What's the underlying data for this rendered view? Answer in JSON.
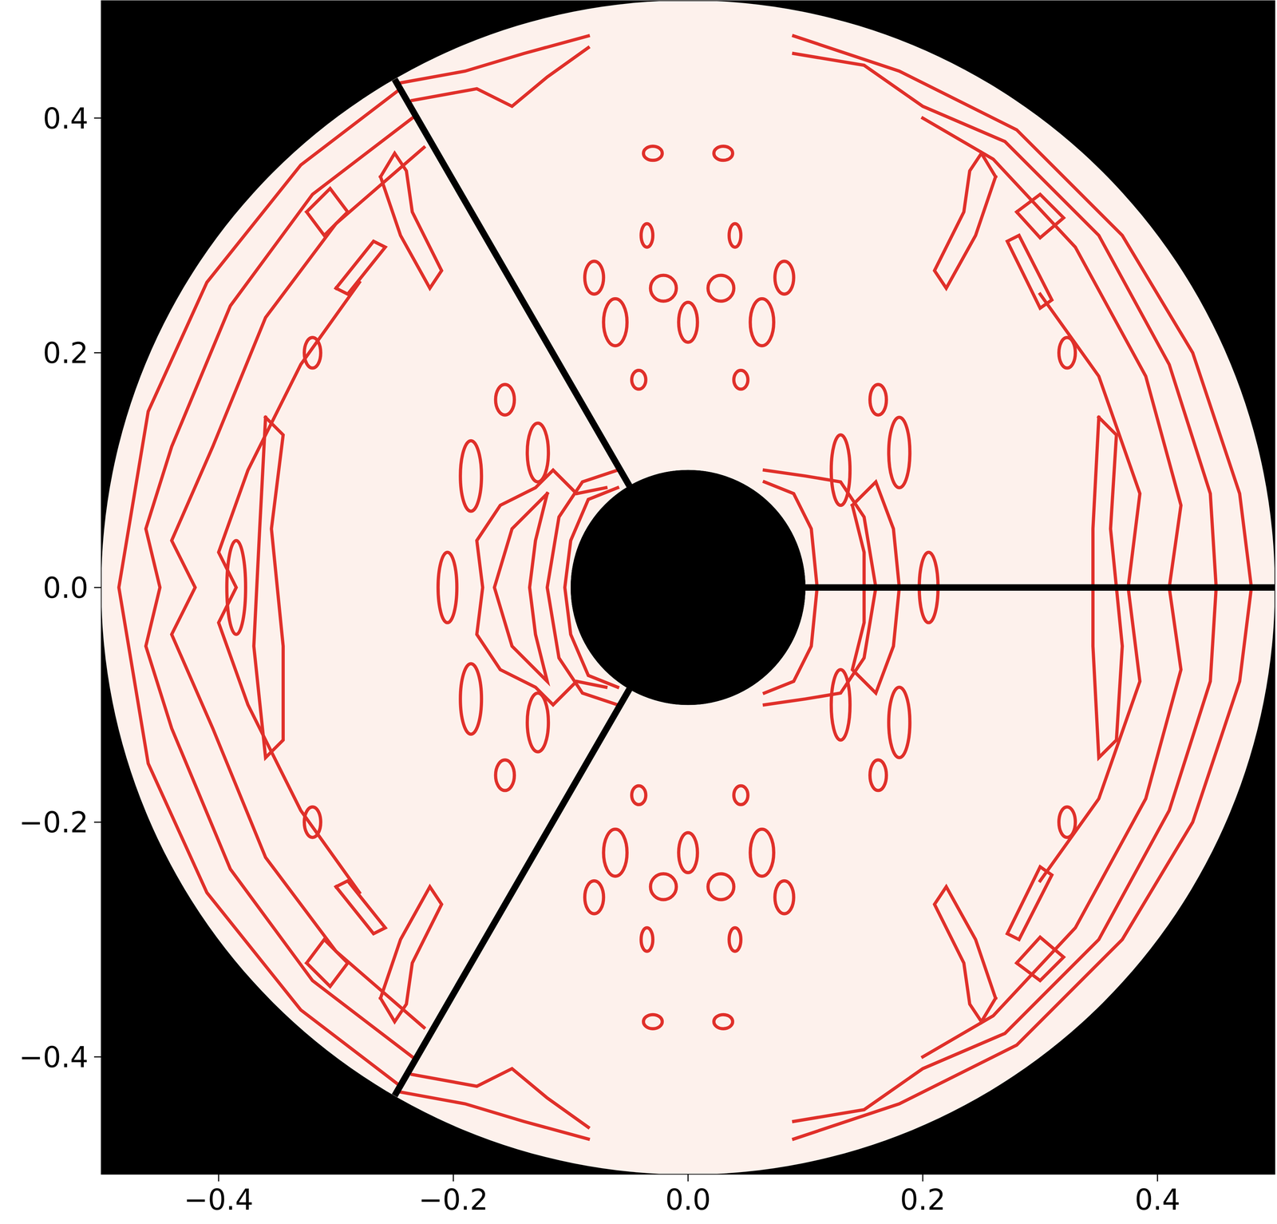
{
  "chart_data": {
    "type": "contour",
    "xlim": [
      -0.5,
      0.5
    ],
    "ylim": [
      -0.5,
      0.5
    ],
    "xticks": [
      {
        "value": -0.4,
        "label": "−0.4"
      },
      {
        "value": -0.2,
        "label": "−0.2"
      },
      {
        "value": 0,
        "label": "0.0"
      },
      0.2,
      0.4
    ],
    "yticks": [
      {
        "value": -0.4,
        "label": "−0.4"
      },
      {
        "value": -0.2,
        "label": "−0.2"
      },
      {
        "value": 0,
        "label": "0.0"
      },
      0.2,
      0.4
    ],
    "color": "#e0302a",
    "inner_radius": 0.1,
    "outer_radius": 0.5,
    "boundary_angles": [
      0,
      120,
      240
    ],
    "contours": [
      [
        [
          -0.245,
          0.425
        ],
        [
          -0.33,
          0.36
        ],
        [
          -0.41,
          0.26
        ],
        [
          -0.46,
          0.15
        ],
        [
          -0.485,
          0.0
        ],
        [
          -0.46,
          -0.15
        ],
        [
          -0.41,
          -0.26
        ],
        [
          -0.33,
          -0.36
        ],
        [
          -0.245,
          -0.425
        ]
      ],
      [
        [
          -0.235,
          0.4
        ],
        [
          -0.32,
          0.335
        ],
        [
          -0.39,
          0.24
        ],
        [
          -0.44,
          0.12
        ],
        [
          -0.462,
          0.05
        ],
        [
          -0.45,
          0.0
        ],
        [
          -0.462,
          -0.05
        ],
        [
          -0.44,
          -0.12
        ],
        [
          -0.39,
          -0.24
        ],
        [
          -0.32,
          -0.335
        ],
        [
          -0.235,
          -0.4
        ]
      ],
      [
        [
          -0.225,
          0.375
        ],
        [
          -0.3,
          0.31
        ],
        [
          -0.36,
          0.23
        ],
        [
          -0.405,
          0.12
        ],
        [
          -0.44,
          0.04
        ],
        [
          -0.42,
          0.0
        ],
        [
          -0.44,
          -0.04
        ],
        [
          -0.405,
          -0.12
        ],
        [
          -0.36,
          -0.23
        ],
        [
          -0.3,
          -0.31
        ],
        [
          -0.225,
          -0.375
        ]
      ],
      [
        [
          -0.28,
          0.26
        ],
        [
          -0.33,
          0.19
        ],
        [
          -0.375,
          0.1
        ],
        [
          -0.4,
          0.03
        ],
        [
          -0.385,
          0.0
        ],
        [
          -0.4,
          -0.03
        ],
        [
          -0.375,
          -0.1
        ],
        [
          -0.33,
          -0.19
        ],
        [
          -0.28,
          -0.26
        ]
      ],
      [
        [
          -0.36,
          0.145
        ],
        [
          -0.345,
          0.13
        ],
        [
          -0.355,
          0.05
        ],
        [
          -0.345,
          -0.05
        ],
        [
          -0.345,
          -0.13
        ],
        [
          -0.36,
          -0.145
        ],
        [
          -0.37,
          -0.05
        ],
        [
          -0.365,
          0.05
        ],
        [
          -0.36,
          0.145
        ]
      ],
      [
        [
          -0.325,
          0.32
        ],
        [
          -0.305,
          0.34
        ],
        [
          -0.29,
          0.32
        ],
        [
          -0.31,
          0.3
        ],
        [
          -0.325,
          0.32
        ]
      ],
      [
        [
          -0.3,
          0.255
        ],
        [
          -0.268,
          0.295
        ],
        [
          -0.258,
          0.29
        ],
        [
          -0.29,
          0.25
        ],
        [
          -0.3,
          0.255
        ]
      ],
      [
        [
          -0.262,
          0.35
        ],
        [
          -0.25,
          0.37
        ],
        [
          -0.24,
          0.355
        ],
        [
          -0.235,
          0.32
        ],
        [
          -0.21,
          0.27
        ],
        [
          -0.22,
          0.255
        ],
        [
          -0.245,
          0.3
        ],
        [
          -0.262,
          0.35
        ]
      ],
      [
        [
          -0.325,
          -0.32
        ],
        [
          -0.305,
          -0.34
        ],
        [
          -0.29,
          -0.32
        ],
        [
          -0.31,
          -0.3
        ],
        [
          -0.325,
          -0.32
        ]
      ],
      [
        [
          -0.3,
          -0.255
        ],
        [
          -0.268,
          -0.295
        ],
        [
          -0.258,
          -0.29
        ],
        [
          -0.29,
          -0.25
        ],
        [
          -0.3,
          -0.255
        ]
      ],
      [
        [
          -0.262,
          -0.35
        ],
        [
          -0.25,
          -0.37
        ],
        [
          -0.24,
          -0.355
        ],
        [
          -0.235,
          -0.32
        ],
        [
          -0.21,
          -0.27
        ],
        [
          -0.22,
          -0.255
        ],
        [
          -0.245,
          -0.3
        ],
        [
          -0.262,
          -0.35
        ]
      ],
      [
        [
          -0.245,
          0.43
        ],
        [
          -0.19,
          0.44
        ],
        [
          -0.14,
          0.455
        ],
        [
          -0.085,
          0.47
        ]
      ],
      [
        [
          -0.235,
          0.415
        ],
        [
          -0.18,
          0.425
        ],
        [
          -0.15,
          0.41
        ],
        [
          -0.12,
          0.435
        ],
        [
          -0.085,
          0.46
        ]
      ],
      [
        [
          -0.245,
          -0.43
        ],
        [
          -0.19,
          -0.44
        ],
        [
          -0.14,
          -0.455
        ],
        [
          -0.085,
          -0.47
        ]
      ],
      [
        [
          -0.235,
          -0.415
        ],
        [
          -0.18,
          -0.425
        ],
        [
          -0.15,
          -0.41
        ],
        [
          -0.12,
          -0.435
        ],
        [
          -0.085,
          -0.46
        ]
      ],
      [
        [
          0.09,
          0.47
        ],
        [
          0.18,
          0.44
        ],
        [
          0.28,
          0.39
        ],
        [
          0.37,
          0.3
        ],
        [
          0.43,
          0.2
        ],
        [
          0.47,
          0.08
        ],
        [
          0.48,
          0.0
        ],
        [
          0.47,
          -0.08
        ],
        [
          0.43,
          -0.2
        ],
        [
          0.37,
          -0.3
        ],
        [
          0.28,
          -0.39
        ],
        [
          0.18,
          -0.44
        ],
        [
          0.09,
          -0.47
        ]
      ],
      [
        [
          0.09,
          0.455
        ],
        [
          0.15,
          0.445
        ],
        [
          0.2,
          0.41
        ],
        [
          0.27,
          0.38
        ],
        [
          0.35,
          0.3
        ],
        [
          0.41,
          0.19
        ],
        [
          0.445,
          0.08
        ],
        [
          0.45,
          0.0
        ],
        [
          0.445,
          -0.08
        ],
        [
          0.41,
          -0.19
        ],
        [
          0.35,
          -0.3
        ],
        [
          0.27,
          -0.38
        ],
        [
          0.2,
          -0.41
        ],
        [
          0.15,
          -0.445
        ],
        [
          0.09,
          -0.455
        ]
      ],
      [
        [
          0.2,
          0.4
        ],
        [
          0.26,
          0.365
        ],
        [
          0.33,
          0.29
        ],
        [
          0.39,
          0.18
        ],
        [
          0.42,
          0.07
        ],
        [
          0.41,
          0.0
        ],
        [
          0.42,
          -0.07
        ],
        [
          0.39,
          -0.18
        ],
        [
          0.33,
          -0.29
        ],
        [
          0.26,
          -0.365
        ],
        [
          0.2,
          -0.4
        ]
      ],
      [
        [
          0.3,
          0.25
        ],
        [
          0.35,
          0.18
        ],
        [
          0.385,
          0.08
        ],
        [
          0.375,
          0.0
        ],
        [
          0.385,
          -0.08
        ],
        [
          0.35,
          -0.18
        ],
        [
          0.3,
          -0.25
        ]
      ],
      [
        [
          0.35,
          0.145
        ],
        [
          0.365,
          0.13
        ],
        [
          0.36,
          0.05
        ],
        [
          0.37,
          -0.05
        ],
        [
          0.365,
          -0.13
        ],
        [
          0.35,
          -0.145
        ],
        [
          0.345,
          -0.05
        ],
        [
          0.345,
          0.05
        ],
        [
          0.35,
          0.145
        ]
      ],
      [
        [
          0.28,
          0.32
        ],
        [
          0.3,
          0.335
        ],
        [
          0.32,
          0.315
        ],
        [
          0.3,
          0.298
        ],
        [
          0.28,
          0.32
        ]
      ],
      [
        [
          0.272,
          0.295
        ],
        [
          0.282,
          0.3
        ],
        [
          0.31,
          0.245
        ],
        [
          0.3,
          0.238
        ],
        [
          0.272,
          0.295
        ]
      ],
      [
        [
          0.262,
          0.35
        ],
        [
          0.25,
          0.37
        ],
        [
          0.24,
          0.355
        ],
        [
          0.235,
          0.32
        ],
        [
          0.21,
          0.27
        ],
        [
          0.22,
          0.255
        ],
        [
          0.245,
          0.3
        ],
        [
          0.262,
          0.35
        ]
      ],
      [
        [
          0.28,
          -0.32
        ],
        [
          0.3,
          -0.335
        ],
        [
          0.32,
          -0.315
        ],
        [
          0.3,
          -0.298
        ],
        [
          0.28,
          -0.32
        ]
      ],
      [
        [
          0.272,
          -0.295
        ],
        [
          0.282,
          -0.3
        ],
        [
          0.31,
          -0.245
        ],
        [
          0.3,
          -0.238
        ],
        [
          0.272,
          -0.295
        ]
      ],
      [
        [
          0.262,
          -0.35
        ],
        [
          0.25,
          -0.37
        ],
        [
          0.24,
          -0.355
        ],
        [
          0.235,
          -0.32
        ],
        [
          0.21,
          -0.27
        ],
        [
          0.22,
          -0.255
        ],
        [
          0.245,
          -0.3
        ],
        [
          0.262,
          -0.35
        ]
      ],
      [
        [
          -0.06,
          0.1
        ],
        [
          -0.09,
          0.09
        ],
        [
          -0.11,
          0.06
        ],
        [
          -0.12,
          0.0
        ],
        [
          -0.11,
          -0.06
        ],
        [
          -0.09,
          -0.09
        ],
        [
          -0.06,
          -0.1
        ]
      ],
      [
        [
          -0.06,
          0.085
        ],
        [
          -0.085,
          0.075
        ],
        [
          -0.1,
          0.04
        ],
        [
          -0.105,
          0.0
        ],
        [
          -0.1,
          -0.04
        ],
        [
          -0.085,
          -0.075
        ],
        [
          -0.06,
          -0.085
        ]
      ],
      [
        [
          -0.12,
          0.08
        ],
        [
          -0.15,
          0.05
        ],
        [
          -0.165,
          0.0
        ],
        [
          -0.15,
          -0.05
        ],
        [
          -0.12,
          -0.08
        ],
        [
          -0.13,
          -0.04
        ],
        [
          -0.135,
          0.0
        ],
        [
          -0.13,
          0.04
        ],
        [
          -0.12,
          0.08
        ]
      ],
      [
        [
          -0.07,
          0.085
        ],
        [
          -0.095,
          0.08
        ],
        [
          -0.115,
          0.1
        ],
        [
          -0.13,
          0.085
        ],
        [
          -0.16,
          0.07
        ],
        [
          -0.18,
          0.04
        ],
        [
          -0.175,
          0.0
        ],
        [
          -0.18,
          -0.04
        ],
        [
          -0.16,
          -0.07
        ],
        [
          -0.13,
          -0.085
        ],
        [
          -0.115,
          -0.1
        ],
        [
          -0.095,
          -0.08
        ],
        [
          -0.07,
          -0.085
        ]
      ],
      [
        [
          0.065,
          0.09
        ],
        [
          0.09,
          0.08
        ],
        [
          0.105,
          0.05
        ],
        [
          0.11,
          0.0
        ],
        [
          0.105,
          -0.05
        ],
        [
          0.09,
          -0.08
        ],
        [
          0.065,
          -0.09
        ]
      ],
      [
        [
          0.065,
          0.1
        ],
        [
          0.1,
          0.095
        ],
        [
          0.13,
          0.09
        ],
        [
          0.15,
          0.06
        ],
        [
          0.16,
          0.0
        ],
        [
          0.15,
          -0.06
        ],
        [
          0.13,
          -0.09
        ],
        [
          0.1,
          -0.095
        ],
        [
          0.065,
          -0.1
        ]
      ],
      [
        [
          0.14,
          0.07
        ],
        [
          0.16,
          0.09
        ],
        [
          0.175,
          0.05
        ],
        [
          0.18,
          0.0
        ],
        [
          0.175,
          -0.05
        ],
        [
          0.16,
          -0.09
        ],
        [
          0.14,
          -0.07
        ],
        [
          0.15,
          -0.03
        ],
        [
          0.15,
          0.03
        ],
        [
          0.14,
          0.07
        ]
      ]
    ],
    "loops": [
      [
        -0.03,
        0.37,
        0.008,
        0.006
      ],
      [
        0.03,
        0.37,
        0.008,
        0.006
      ],
      [
        -0.035,
        0.3,
        0.005,
        0.01
      ],
      [
        0.04,
        0.3,
        0.005,
        0.01
      ],
      [
        -0.042,
        0.177,
        0.006,
        0.008
      ],
      [
        0.045,
        0.177,
        0.006,
        0.008
      ],
      [
        -0.08,
        0.264,
        0.008,
        0.014
      ],
      [
        -0.021,
        0.255,
        0.011,
        0.011
      ],
      [
        0.028,
        0.255,
        0.011,
        0.011
      ],
      [
        0.082,
        0.264,
        0.008,
        0.014
      ],
      [
        -0.062,
        0.226,
        0.01,
        0.02
      ],
      [
        0.0,
        0.226,
        0.008,
        0.017
      ],
      [
        0.063,
        0.226,
        0.01,
        0.02
      ],
      [
        -0.156,
        0.16,
        0.008,
        0.013
      ],
      [
        0.162,
        0.16,
        0.007,
        0.013
      ],
      [
        -0.32,
        0.2,
        0.007,
        0.013
      ],
      [
        0.323,
        0.2,
        0.007,
        0.013
      ],
      [
        -0.185,
        0.095,
        0.009,
        0.03
      ],
      [
        -0.128,
        0.115,
        0.009,
        0.025
      ],
      [
        0.13,
        0.1,
        0.008,
        0.03
      ],
      [
        0.18,
        0.115,
        0.009,
        0.03
      ],
      [
        -0.03,
        -0.37,
        0.008,
        0.006
      ],
      [
        0.03,
        -0.37,
        0.008,
        0.006
      ],
      [
        -0.035,
        -0.3,
        0.005,
        0.01
      ],
      [
        0.04,
        -0.3,
        0.005,
        0.01
      ],
      [
        -0.042,
        -0.177,
        0.006,
        0.008
      ],
      [
        0.045,
        -0.177,
        0.006,
        0.008
      ],
      [
        -0.08,
        -0.264,
        0.008,
        0.014
      ],
      [
        -0.021,
        -0.255,
        0.011,
        0.011
      ],
      [
        0.028,
        -0.255,
        0.011,
        0.011
      ],
      [
        0.082,
        -0.264,
        0.008,
        0.014
      ],
      [
        -0.062,
        -0.226,
        0.01,
        0.02
      ],
      [
        0.0,
        -0.226,
        0.008,
        0.017
      ],
      [
        0.063,
        -0.226,
        0.01,
        0.02
      ],
      [
        -0.156,
        -0.16,
        0.008,
        0.013
      ],
      [
        0.162,
        -0.16,
        0.007,
        0.013
      ],
      [
        -0.32,
        -0.2,
        0.007,
        0.013
      ],
      [
        0.323,
        -0.2,
        0.007,
        0.013
      ],
      [
        -0.185,
        -0.095,
        0.009,
        0.03
      ],
      [
        -0.128,
        -0.115,
        0.009,
        0.025
      ],
      [
        0.13,
        -0.1,
        0.008,
        0.03
      ],
      [
        0.18,
        -0.115,
        0.009,
        0.03
      ],
      [
        -0.205,
        0.0,
        0.008,
        0.03
      ],
      [
        0.205,
        0.0,
        0.008,
        0.03
      ],
      [
        -0.385,
        0.0,
        0.008,
        0.04
      ]
    ]
  }
}
